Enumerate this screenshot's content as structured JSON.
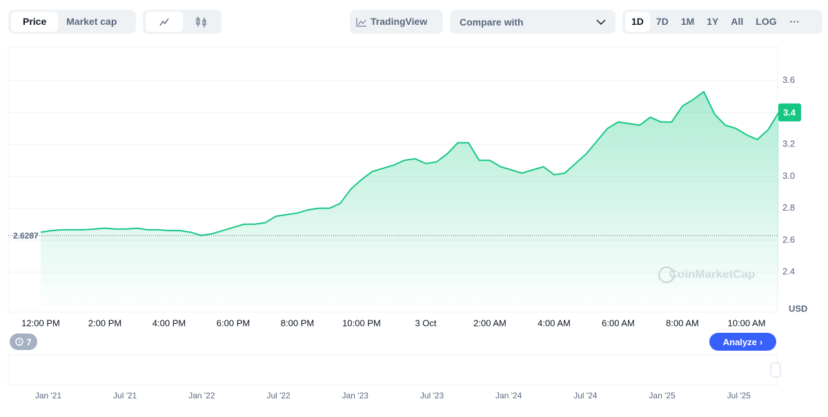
{
  "toolbar": {
    "tabs": [
      "Price",
      "Market cap"
    ],
    "tradingview": "TradingView",
    "compare": "Compare with",
    "ranges": [
      "1D",
      "7D",
      "1M",
      "1Y",
      "All",
      "LOG"
    ]
  },
  "chart_data": {
    "type": "line",
    "categories": [
      "12:00 PM",
      null,
      null,
      null,
      null,
      null,
      "2:00 PM",
      null,
      null,
      null,
      null,
      null,
      "4:00 PM",
      null,
      null,
      null,
      null,
      null,
      "6:00 PM",
      null,
      null,
      null,
      null,
      null,
      "8:00 PM",
      null,
      null,
      null,
      null,
      null,
      "10:00 PM",
      null,
      null,
      null,
      null,
      null,
      "3 Oct",
      null,
      null,
      null,
      null,
      null,
      "2:00 AM",
      null,
      null,
      null,
      null,
      null,
      "4:00 AM",
      null,
      null,
      null,
      null,
      null,
      "6:00 AM",
      null,
      null,
      null,
      null,
      null,
      "8:00 AM",
      null,
      null,
      null,
      null,
      null,
      "10:00 AM",
      null,
      null,
      null
    ],
    "values": [
      2.65,
      2.66,
      2.665,
      2.665,
      2.665,
      2.67,
      2.675,
      2.67,
      2.67,
      2.675,
      2.665,
      2.665,
      2.66,
      2.66,
      2.65,
      2.63,
      2.64,
      2.66,
      2.68,
      2.7,
      2.7,
      2.71,
      2.75,
      2.76,
      2.77,
      2.79,
      2.8,
      2.8,
      2.83,
      2.92,
      2.98,
      3.03,
      3.05,
      3.07,
      3.1,
      3.11,
      3.08,
      3.09,
      3.14,
      3.21,
      3.21,
      3.1,
      3.1,
      3.06,
      3.04,
      3.02,
      3.04,
      3.06,
      3.01,
      3.02,
      3.08,
      3.14,
      3.22,
      3.3,
      3.34,
      3.33,
      3.32,
      3.37,
      3.34,
      3.34,
      3.44,
      3.48,
      3.53,
      3.39,
      3.32,
      3.3,
      3.26,
      3.23,
      3.29,
      3.4
    ],
    "color": "#16c784",
    "ylim": [
      2.15,
      3.81
    ],
    "yticks": [
      2.4,
      2.6,
      2.8,
      {
        "value": 3,
        "label": "3.0"
      },
      3.2,
      3.4,
      3.6
    ],
    "grid": true,
    "y_unit": "USD",
    "reference_price": 2.6287,
    "current_price": 3.4,
    "watermark": "CoinMarketCap",
    "events_count": 7,
    "analyze": "Analyze",
    "navigator_labels": [
      "Jan '21",
      "Jul '21",
      "Jan '22",
      "Jul '22",
      "Jan '23",
      "Jul '23",
      "Jan '24",
      "Jul '24",
      "Jan '25",
      "Jul '25"
    ]
  }
}
